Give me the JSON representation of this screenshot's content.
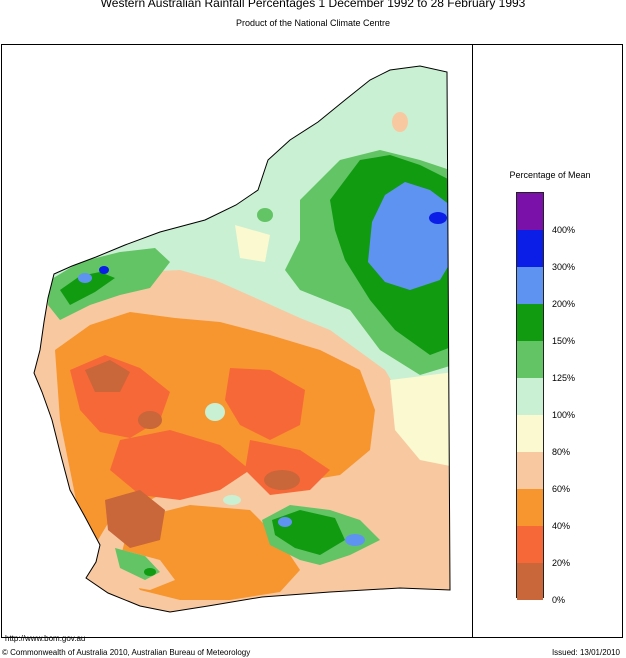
{
  "header": {
    "title": "Western Australian Rainfall Percentages 1 December 1992 to 28 February 1993",
    "subtitle": "Product of the National Climate Centre"
  },
  "legend": {
    "title": "Percentage of Mean",
    "ticks": [
      "400%",
      "300%",
      "200%",
      "150%",
      "125%",
      "100%",
      "80%",
      "60%",
      "40%",
      "20%",
      "0%"
    ],
    "colors": [
      "#7a11a8",
      "#0a1ee8",
      "#5f93f2",
      "#119b11",
      "#62c464",
      "#c9f0d2",
      "#fbf9cf",
      "#f8c8a0",
      "#f7962e",
      "#f76838",
      "#c9663a"
    ]
  },
  "footer": {
    "url": "http://www.bom.gov.au",
    "copyright": "© Commonwealth of Australia 2010, Australian Bureau of Meteorology",
    "issued": "Issued: 13/01/2010"
  }
}
